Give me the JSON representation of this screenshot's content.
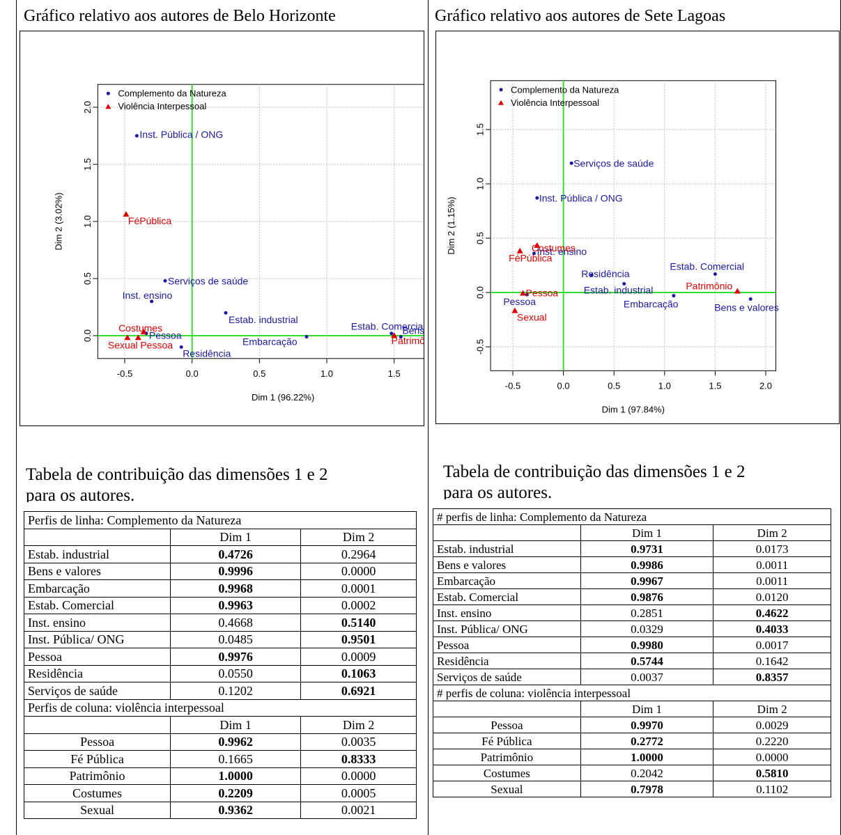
{
  "left": {
    "title": "Gráfico relativo aos autores de Belo Horizonte",
    "caption_line1": "Tabela de contribuição das dimensões 1 e 2",
    "caption_line2": "para os autores.",
    "table": {
      "row_header": "Perfis de linha: Complemento da Natureza",
      "col_header": "Perfis de coluna: violência interpessoal",
      "dim1": "Dim 1",
      "dim2": "Dim 2",
      "rows": [
        {
          "name": "Estab. industrial",
          "d1": "0.4726",
          "d2": "0.2964",
          "b1": true,
          "b2": false
        },
        {
          "name": "Bens e valores",
          "d1": "0.9996",
          "d2": "0.0000",
          "b1": true,
          "b2": false
        },
        {
          "name": "Embarcação",
          "d1": "0.9968",
          "d2": "0.0001",
          "b1": true,
          "b2": false
        },
        {
          "name": "Estab. Comercial",
          "d1": "0.9963",
          "d2": "0.0002",
          "b1": true,
          "b2": false
        },
        {
          "name": "Inst. ensino",
          "d1": "0.4668",
          "d2": "0.5140",
          "b1": false,
          "b2": true
        },
        {
          "name": "Inst. Pública/ ONG",
          "d1": "0.0485",
          "d2": "0.9501",
          "b1": false,
          "b2": true
        },
        {
          "name": "Pessoa",
          "d1": "0.9976",
          "d2": "0.0009",
          "b1": true,
          "b2": false
        },
        {
          "name": "Residência",
          "d1": "0.0550",
          "d2": "0.1063",
          "b1": false,
          "b2": true
        },
        {
          "name": "Serviços de saúde",
          "d1": "0.1202",
          "d2": "0.6921",
          "b1": false,
          "b2": true
        }
      ],
      "cols": [
        {
          "name": "Pessoa",
          "d1": "0.9962",
          "d2": "0.0035",
          "b1": true,
          "b2": false
        },
        {
          "name": "Fé Pública",
          "d1": "0.1665",
          "d2": "0.8333",
          "b1": false,
          "b2": true
        },
        {
          "name": "Patrimônio",
          "d1": "1.0000",
          "d2": "0.0000",
          "b1": true,
          "b2": false
        },
        {
          "name": "Costumes",
          "d1": "0.2209",
          "d2": "0.0005",
          "b1": true,
          "b2": false
        },
        {
          "name": "Sexual",
          "d1": "0.9362",
          "d2": "0.0021",
          "b1": true,
          "b2": false
        }
      ]
    }
  },
  "right": {
    "title": "Gráfico relativo aos autores de Sete Lagoas",
    "caption_line1": "Tabela de contribuição das dimensões 1 e 2",
    "caption_line2": "para os autores.",
    "table": {
      "row_header": "# perfis de linha: Complemento da Natureza",
      "col_header": "# perfis de coluna: violência interpessoal",
      "dim1": "Dim 1",
      "dim2": "Dim 2",
      "rows": [
        {
          "name": "Estab. industrial",
          "d1": "0.9731",
          "d2": "0.0173",
          "b1": true,
          "b2": false
        },
        {
          "name": "Bens e valores",
          "d1": "0.9986",
          "d2": "0.0011",
          "b1": true,
          "b2": false
        },
        {
          "name": "Embarcação",
          "d1": "0.9967",
          "d2": "0.0011",
          "b1": true,
          "b2": false
        },
        {
          "name": "Estab. Comercial",
          "d1": "0.9876",
          "d2": "0.0120",
          "b1": true,
          "b2": false
        },
        {
          "name": "Inst. ensino",
          "d1": "0.2851",
          "d2": "0.4622",
          "b1": false,
          "b2": true
        },
        {
          "name": "Inst. Pública/ ONG",
          "d1": "0.0329",
          "d2": "0.4033",
          "b1": false,
          "b2": true
        },
        {
          "name": "Pessoa",
          "d1": "0.9980",
          "d2": "0.0017",
          "b1": true,
          "b2": false
        },
        {
          "name": "Residência",
          "d1": "0.5744",
          "d2": "0.1642",
          "b1": true,
          "b2": false
        },
        {
          "name": "Serviços de saúde",
          "d1": "0.0037",
          "d2": "0.8357",
          "b1": false,
          "b2": true
        }
      ],
      "cols": [
        {
          "name": "Pessoa",
          "d1": "0.9970",
          "d2": "0.0029",
          "b1": true,
          "b2": false
        },
        {
          "name": "Fé Pública",
          "d1": "0.2772",
          "d2": "0.2220",
          "b1": true,
          "b2": false
        },
        {
          "name": "Patrimônio",
          "d1": "1.0000",
          "d2": "0.0000",
          "b1": true,
          "b2": false
        },
        {
          "name": "Costumes",
          "d1": "0.2042",
          "d2": "0.5810",
          "b1": false,
          "b2": true
        },
        {
          "name": "Sexual",
          "d1": "0.7978",
          "d2": "0.1102",
          "b1": true,
          "b2": false
        }
      ]
    }
  },
  "chart_data": [
    {
      "type": "scatter",
      "xlabel": "Dim 1 (96.22%)",
      "ylabel": "Dim 2 (3.02%)",
      "xlim": [
        -0.7,
        2.05
      ],
      "ylim": [
        -0.2,
        2.2
      ],
      "xticks": [
        "-0.5",
        "0.0",
        "0.5",
        "1.0",
        "1.5",
        "2.0"
      ],
      "yticks": [
        "0.0",
        "0.5",
        "1.0",
        "1.5",
        "2.0"
      ],
      "grid": true,
      "legend_position": "top-left",
      "colors": {
        "rows": "#1a1aa6",
        "cols": "#e00000",
        "axes": "#33dd33"
      },
      "series": [
        {
          "name": "Complemento da Natureza",
          "points": [
            {
              "label": "Inst. Pública / ONG",
              "x": -0.41,
              "y": 1.75
            },
            {
              "label": "Serviços de saúde",
              "x": -0.2,
              "y": 0.48
            },
            {
              "label": "Inst. ensino",
              "x": -0.3,
              "y": 0.3
            },
            {
              "label": "Estab. industrial",
              "x": 0.25,
              "y": 0.2
            },
            {
              "label": "Estab. Comercial",
              "x": 1.48,
              "y": 0.02
            },
            {
              "label": "Embarcação",
              "x": 0.85,
              "y": -0.01
            },
            {
              "label": "Bens e valores",
              "x": 1.55,
              "y": -0.01
            },
            {
              "label": "Residência",
              "x": -0.08,
              "y": -0.1
            },
            {
              "label": "Pessoa",
              "x": -0.34,
              "y": 0.02
            }
          ]
        },
        {
          "name": "Violência Interpessoal",
          "points": [
            {
              "label": "FéPública",
              "x": -0.49,
              "y": 1.06
            },
            {
              "label": "Costumes",
              "x": -0.36,
              "y": 0.03
            },
            {
              "label": "Sexual",
              "x": -0.48,
              "y": -0.02
            },
            {
              "label": "Pessoa",
              "x": -0.4,
              "y": -0.02
            },
            {
              "label": "Patrimônio",
              "x": 1.5,
              "y": 0.0
            }
          ]
        }
      ]
    },
    {
      "type": "scatter",
      "xlabel": "Dim 1 (97.84%)",
      "ylabel": "Dim 2 (1.15%)",
      "xlim": [
        -0.72,
        2.1
      ],
      "ylim": [
        -0.72,
        1.95
      ],
      "xticks": [
        "-0.5",
        "0.0",
        "0.5",
        "1.0",
        "1.5",
        "2.0"
      ],
      "yticks": [
        "-0.5",
        "0.0",
        "0.5",
        "1.0",
        "1.5"
      ],
      "grid": true,
      "legend_position": "top-left",
      "colors": {
        "rows": "#1a1aa6",
        "cols": "#e00000",
        "axes": "#33dd33"
      },
      "series": [
        {
          "name": "Complemento da Natureza",
          "points": [
            {
              "label": "Serviços de saúde",
              "x": 0.08,
              "y": 1.19
            },
            {
              "label": "Inst. Pública / ONG",
              "x": -0.26,
              "y": 0.87
            },
            {
              "label": "Inst. ensino",
              "x": -0.29,
              "y": 0.36
            },
            {
              "label": "Residência",
              "x": 0.28,
              "y": 0.16
            },
            {
              "label": "Estab. Comercial",
              "x": 1.5,
              "y": 0.17
            },
            {
              "label": "Estab. industrial",
              "x": 0.6,
              "y": 0.08
            },
            {
              "label": "Embarcação",
              "x": 1.09,
              "y": -0.03
            },
            {
              "label": "Bens e valores",
              "x": 1.85,
              "y": -0.06
            },
            {
              "label": "Pessoa",
              "x": -0.36,
              "y": -0.02
            }
          ]
        },
        {
          "name": "Violência Interpessoal",
          "points": [
            {
              "label": "Costumes",
              "x": -0.26,
              "y": 0.43
            },
            {
              "label": "FéPública",
              "x": -0.43,
              "y": 0.38
            },
            {
              "label": "Pessoa",
              "x": -0.4,
              "y": -0.01
            },
            {
              "label": "Sexual",
              "x": -0.48,
              "y": -0.17
            },
            {
              "label": "Patrimônio",
              "x": 1.72,
              "y": 0.01
            }
          ]
        }
      ]
    }
  ]
}
